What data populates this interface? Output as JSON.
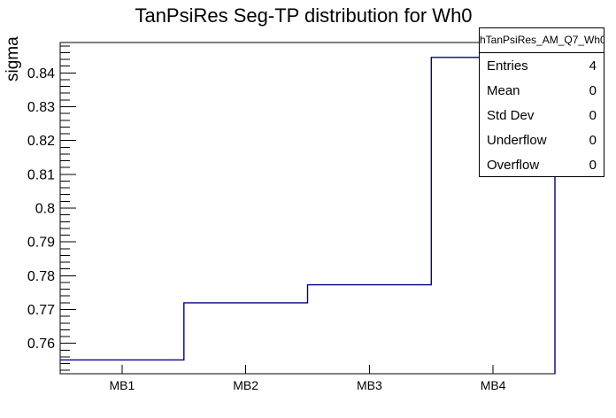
{
  "title": "TanPsiRes Seg-TP distribution for Wh0",
  "y_axis_label": "sigma",
  "stats_box": {
    "header": "hTanPsiRes_AM_Q7_Wh0",
    "rows": [
      {
        "label": "Entries",
        "value": "4"
      },
      {
        "label": "Mean",
        "value": "0"
      },
      {
        "label": "Std Dev",
        "value": "0"
      },
      {
        "label": "Underflow",
        "value": "0"
      },
      {
        "label": "Overflow",
        "value": "0"
      }
    ]
  },
  "chart_data": {
    "type": "line",
    "style": "step-histogram",
    "title": "TanPsiRes Seg-TP distribution for Wh0",
    "xlabel": "",
    "ylabel": "sigma",
    "categories": [
      "MB1",
      "MB2",
      "MB3",
      "MB4"
    ],
    "values": [
      0.7551,
      0.772,
      0.7773,
      0.8446
    ],
    "ylim": [
      0.751,
      0.849
    ],
    "y_major_ticks": [
      0.76,
      0.77,
      0.78,
      0.79,
      0.8,
      0.81,
      0.82,
      0.83,
      0.84
    ],
    "y_major_tick_labels": [
      "0.76",
      "0.77",
      "0.78",
      "0.79",
      "0.8",
      "0.81",
      "0.82",
      "0.83",
      "0.84"
    ],
    "y_minor_step": 0.002,
    "grid": false,
    "legend": "stats-box-top-right",
    "line_color": "#00008b",
    "axis_color": "#000000"
  }
}
